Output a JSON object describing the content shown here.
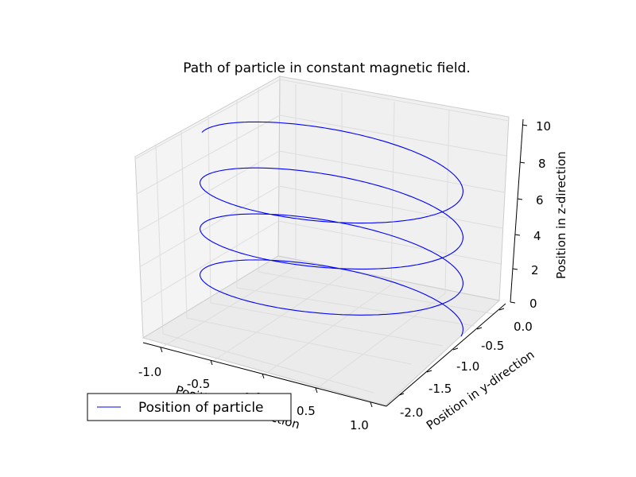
{
  "chart_data": {
    "type": "line",
    "projection": "3d",
    "title": "Path of particle in constant magnetic field.",
    "xlabel": "Position in x-direction",
    "ylabel": "Position in y-direction",
    "zlabel": "Position in z-direction",
    "xlim": [
      -1.0,
      1.0
    ],
    "ylim": [
      -2.0,
      0.0
    ],
    "zlim": [
      0,
      10
    ],
    "xticks": [
      "-1.0",
      "-0.5",
      "0.0",
      "0.5",
      "1.0"
    ],
    "yticks": [
      "0.0",
      "-0.5",
      "-1.0",
      "-1.5",
      "-2.0"
    ],
    "zticks": [
      "0",
      "2",
      "4",
      "6",
      "8",
      "10"
    ],
    "grid": true,
    "legend": {
      "location": "lower-left",
      "entries": [
        "Position of particle"
      ]
    },
    "series": [
      {
        "name": "Position of particle",
        "color": "#0000ff",
        "curve": "helix",
        "center_x": 0.0,
        "center_y": -1.0,
        "radius": 1.0,
        "turns": 3.5,
        "z_range": [
          0,
          9
        ]
      }
    ]
  }
}
